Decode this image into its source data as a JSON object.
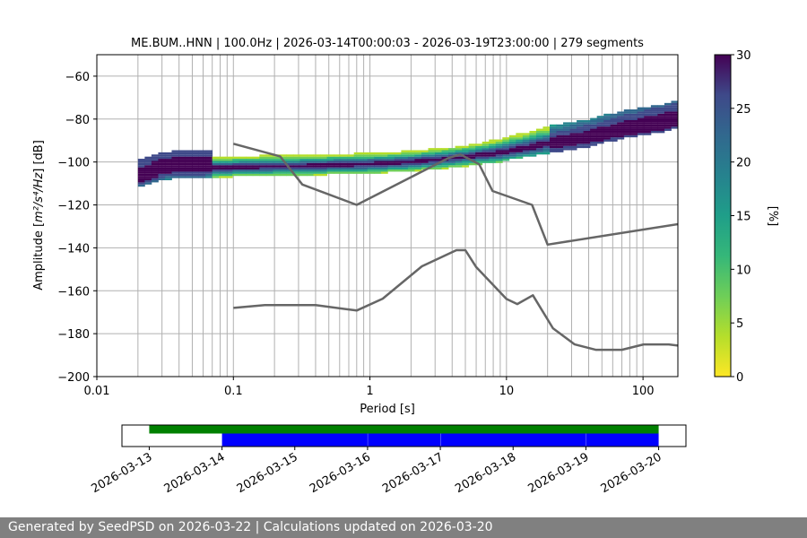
{
  "chart_data": [
    {
      "type": "heatmap",
      "title": "ME.BUM..HNN | 100.0Hz | 2026-03-14T00:00:03 - 2026-03-19T23:00:00 | 279 segments",
      "xlabel": "Period [s]",
      "ylabel_prefix": "Amplitude [",
      "ylabel_unit": "m²/s⁴/Hz",
      "ylabel_suffix": "] [dB]",
      "xscale": "log",
      "xlim": [
        0.01,
        180
      ],
      "ylim": [
        -200,
        -50
      ],
      "xticks": [
        {
          "value": 0.01,
          "label": "0.01"
        },
        {
          "value": 0.1,
          "label": "0.1"
        },
        {
          "value": 1,
          "label": "1"
        },
        {
          "value": 10,
          "label": "10"
        },
        {
          "value": 100,
          "label": "100"
        }
      ],
      "yticks": [
        -60,
        -80,
        -100,
        -120,
        -140,
        -160,
        -180,
        -200
      ],
      "grid": true,
      "colorbar": {
        "label": "[%]",
        "range": [
          0,
          30
        ],
        "ticks": [
          0,
          5,
          10,
          15,
          20,
          25,
          30
        ],
        "colormap": "viridis_r"
      },
      "psd_mode": [
        [
          0.02,
          -108
        ],
        [
          0.025,
          -106
        ],
        [
          0.03,
          -104
        ],
        [
          0.04,
          -103
        ],
        [
          0.06,
          -103
        ],
        [
          0.1,
          -102.5
        ],
        [
          0.2,
          -102
        ],
        [
          0.3,
          -102
        ],
        [
          0.5,
          -101.5
        ],
        [
          1,
          -101
        ],
        [
          2,
          -100
        ],
        [
          3,
          -99
        ],
        [
          5,
          -97.5
        ],
        [
          8,
          -96
        ],
        [
          10,
          -95
        ],
        [
          15,
          -93
        ],
        [
          20,
          -91.5
        ],
        [
          30,
          -90
        ],
        [
          50,
          -87
        ],
        [
          70,
          -85
        ],
        [
          100,
          -83
        ],
        [
          150,
          -81
        ],
        [
          180,
          -80
        ]
      ],
      "series": [
        {
          "name": "NHNM",
          "points": [
            [
              0.1,
              -91.5
            ],
            [
              0.22,
              -97.4
            ],
            [
              0.32,
              -110.5
            ],
            [
              0.8,
              -120
            ],
            [
              3.8,
              -98
            ],
            [
              4.6,
              -96.5
            ],
            [
              6.3,
              -101
            ],
            [
              7.9,
              -113.5
            ],
            [
              15.4,
              -120
            ],
            [
              20,
              -138.5
            ],
            [
              354.8,
              -126
            ]
          ]
        },
        {
          "name": "NLNM",
          "points": [
            [
              0.1,
              -168
            ],
            [
              0.17,
              -166.7
            ],
            [
              0.4,
              -166.7
            ],
            [
              0.8,
              -169.2
            ],
            [
              1.24,
              -163.7
            ],
            [
              2.4,
              -148.6
            ],
            [
              4.3,
              -141.1
            ],
            [
              5,
              -141.1
            ],
            [
              6,
              -149
            ],
            [
              10,
              -163.8
            ],
            [
              12,
              -166.2
            ],
            [
              15.6,
              -162.1
            ],
            [
              21.9,
              -177.5
            ],
            [
              31.6,
              -185
            ],
            [
              45,
              -187.5
            ],
            [
              70,
              -187.5
            ],
            [
              101,
              -185
            ],
            [
              154,
              -185
            ],
            [
              328,
              -187.5
            ]
          ]
        }
      ],
      "vlines": [
        0.02,
        0.03,
        0.04,
        0.05,
        0.06,
        0.07,
        0.08,
        0.09,
        0.2,
        0.3,
        0.4,
        0.5,
        0.6,
        0.7,
        0.8,
        0.9,
        2,
        3,
        4,
        5,
        6,
        7,
        8,
        9,
        20,
        30,
        40,
        50,
        60,
        70,
        80,
        90
      ]
    },
    {
      "type": "timeline",
      "xlim": [
        "2026-03-12T15:00:00",
        "2026-03-20T09:00:00"
      ],
      "xticks": [
        "2026-03-13",
        "2026-03-14",
        "2026-03-15",
        "2026-03-16",
        "2026-03-17",
        "2026-03-18",
        "2026-03-19",
        "2026-03-20"
      ],
      "available_data": {
        "color": "#008000",
        "start": "2026-03-13T00:00:00",
        "end": "2026-03-20T00:00:00"
      },
      "used_data": {
        "color": "#0000ff",
        "segments": [
          [
            "2026-03-14T00:00:03",
            "2026-03-16T00:00:00"
          ],
          [
            "2026-03-16T00:05:00",
            "2026-03-17T00:00:00"
          ],
          [
            "2026-03-17T00:05:00",
            "2026-03-19T00:00:00"
          ],
          [
            "2026-03-19T00:05:00",
            "2026-03-20T00:00:00"
          ]
        ]
      }
    }
  ],
  "footer": {
    "text": "Generated by SeedPSD on 2026-03-22 | Calculations updated on 2026-03-20"
  }
}
